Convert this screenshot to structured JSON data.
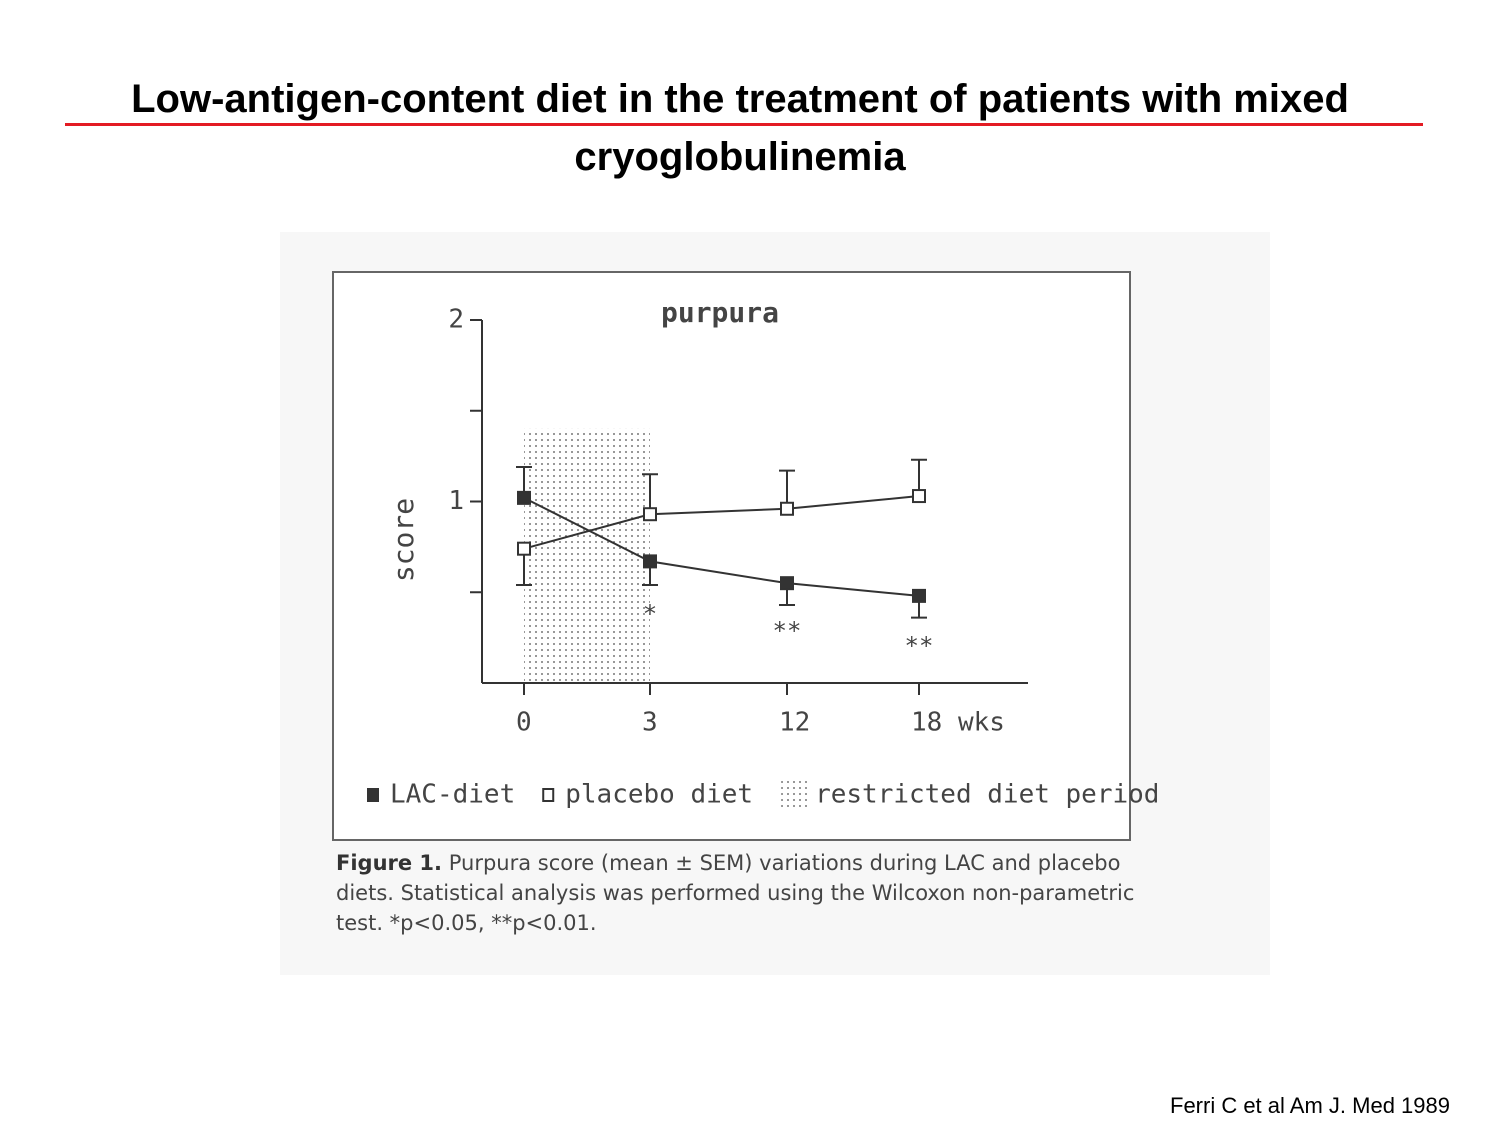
{
  "slide": {
    "title": "Low-antigen-content diet in the treatment of patients with mixed cryoglobulinemia",
    "citation": "Ferri C et al Am J. Med 1989"
  },
  "chart_data": {
    "type": "line",
    "title": "purpura",
    "y_label": "score",
    "categories": [
      "0",
      "3",
      "12",
      "18 wks"
    ],
    "series": [
      {
        "name": "LAC-diet",
        "color": "#333333",
        "marker": "filled",
        "values": [
          1.02,
          0.67,
          0.55,
          0.48
        ],
        "errors": [
          0.17,
          0.13,
          0.12,
          0.12
        ],
        "error_side": [
          "up",
          "down",
          "down",
          "down"
        ]
      },
      {
        "name": "placebo diet",
        "color": "#333333",
        "marker": "open",
        "values": [
          0.74,
          0.93,
          0.96,
          1.03
        ],
        "errors": [
          0.2,
          0.22,
          0.21,
          0.2
        ],
        "error_side": [
          "down",
          "up",
          "up",
          "up"
        ]
      }
    ],
    "shaded_region": {
      "name": "restricted diet period",
      "span": [
        "0",
        "3"
      ],
      "top": 1.4
    },
    "significance": [
      null,
      "*",
      "**",
      "**"
    ],
    "ylim": [
      0,
      2
    ],
    "yticks": [
      1,
      2
    ],
    "yminor_ticks": [
      0.5,
      1.5
    ],
    "caption": {
      "label": "Figure 1.",
      "text": "Purpura score (mean ± SEM) variations during LAC and placebo diets. Statistical analysis was performed using the Wilcoxon non-parametric test. *p<0.05, **p<0.01."
    }
  }
}
